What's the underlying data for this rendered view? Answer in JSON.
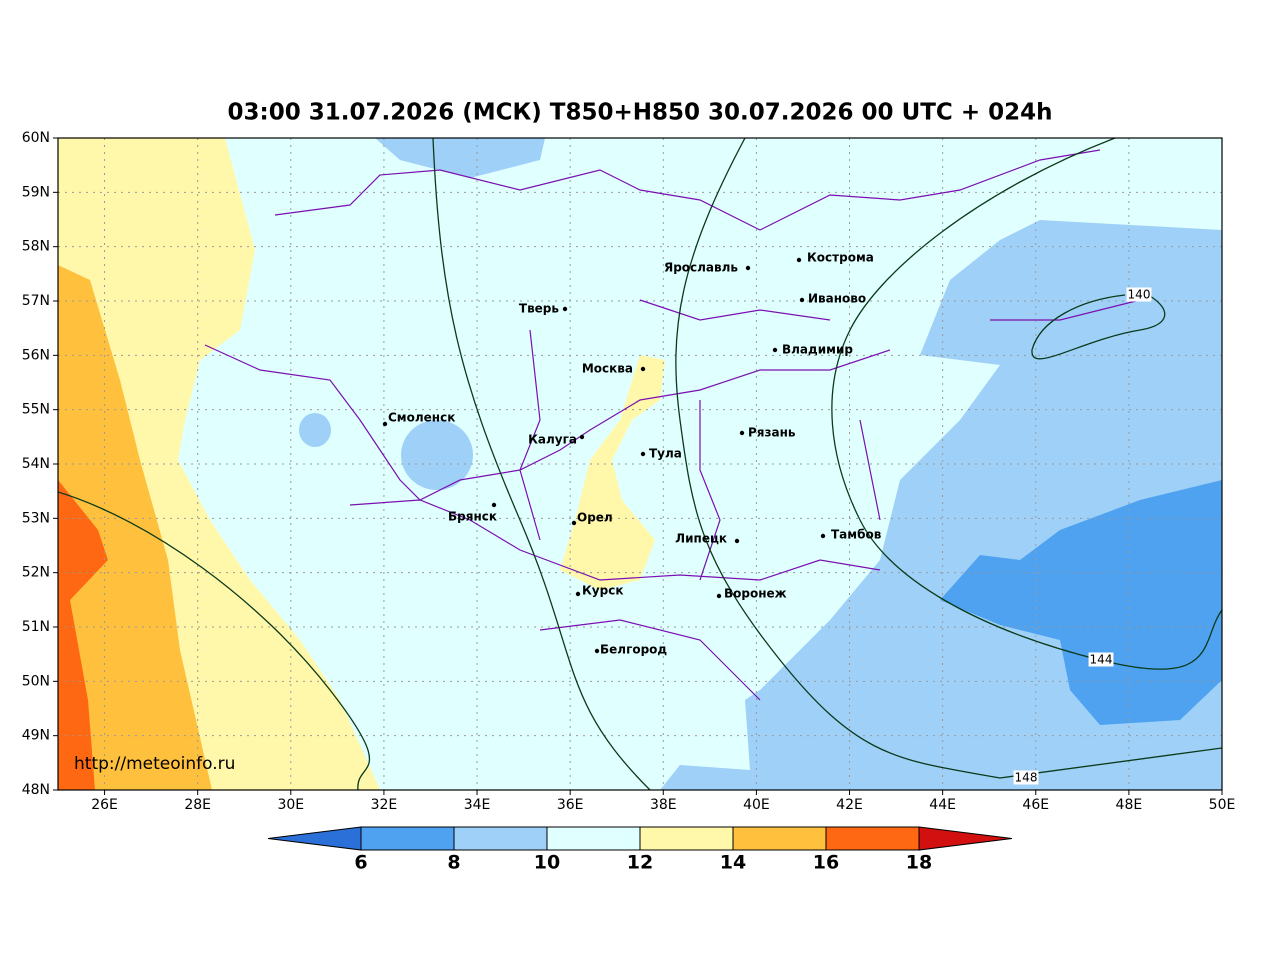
{
  "title": "03:00 31.07.2026 (МСК) T850+H850 30.07.2026 00 UTC + 024h",
  "map": {
    "xlim": [
      25,
      50
    ],
    "ylim": [
      48,
      60
    ],
    "grid": true,
    "xticks": [
      {
        "value": 26,
        "label": "26E"
      },
      {
        "value": 28,
        "label": "28E"
      },
      {
        "value": 30,
        "label": "30E"
      },
      {
        "value": 32,
        "label": "32E"
      },
      {
        "value": 34,
        "label": "34E"
      },
      {
        "value": 36,
        "label": "36E"
      },
      {
        "value": 38,
        "label": "38E"
      },
      {
        "value": 40,
        "label": "40E"
      },
      {
        "value": 42,
        "label": "42E"
      },
      {
        "value": 44,
        "label": "44E"
      },
      {
        "value": 46,
        "label": "46E"
      },
      {
        "value": 48,
        "label": "48E"
      },
      {
        "value": 50,
        "label": "50E"
      }
    ],
    "yticks": [
      {
        "value": 48,
        "label": "48N"
      },
      {
        "value": 49,
        "label": "49N"
      },
      {
        "value": 50,
        "label": "50N"
      },
      {
        "value": 51,
        "label": "51N"
      },
      {
        "value": 52,
        "label": "52N"
      },
      {
        "value": 53,
        "label": "53N"
      },
      {
        "value": 54,
        "label": "54N"
      },
      {
        "value": 55,
        "label": "55N"
      },
      {
        "value": 56,
        "label": "56N"
      },
      {
        "value": 57,
        "label": "57N"
      },
      {
        "value": 58,
        "label": "58N"
      },
      {
        "value": 59,
        "label": "59N"
      },
      {
        "value": 60,
        "label": "60N"
      }
    ]
  },
  "cities": [
    "Кострома",
    "Ярославль",
    "Иваново",
    "Тверь",
    "Владимир",
    "Москва",
    "Смоленск",
    "Рязань",
    "Калуга",
    "Тула",
    "Брянск",
    "Орел",
    "Липецк",
    "Тамбов",
    "Курск",
    "Воронеж",
    "Белгород"
  ],
  "contour_labels": [
    140,
    144,
    148
  ],
  "colorbar": {
    "ticks": [
      6,
      8,
      10,
      12,
      14,
      16,
      18
    ],
    "colors": [
      "#2b6fd8",
      "#4ea2f0",
      "#9fd0f8",
      "#e0ffff",
      "#fff8aa",
      "#ffc03e",
      "#ff6812",
      "#d21010"
    ]
  },
  "source": "http://meteoinfo.ru"
}
